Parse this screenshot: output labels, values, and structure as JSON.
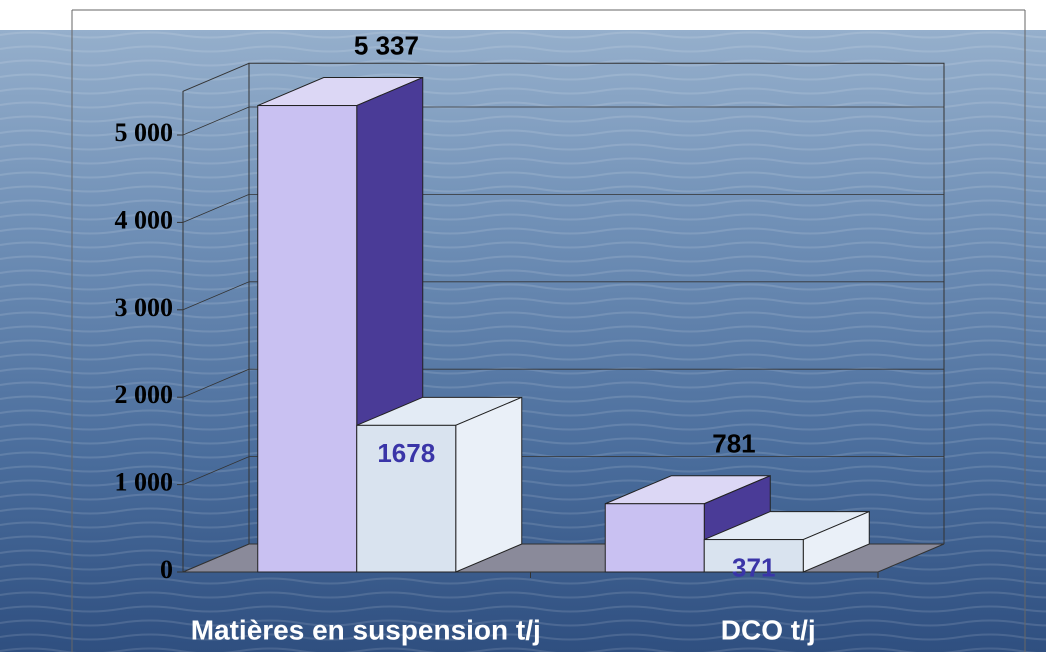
{
  "chart_data": {
    "type": "bar3d",
    "categories": [
      "Matières en suspension t/j",
      "DCO t/j"
    ],
    "series": [
      {
        "color": "#c9c1f2",
        "values": [
          5337,
          781
        ],
        "value_labels": [
          "5 337",
          "781"
        ]
      },
      {
        "color": "#d9e3ef",
        "values": [
          1678,
          371
        ]
      }
    ],
    "ylim": [
      0,
      5500
    ],
    "yticks": [
      0,
      {
        "value": 1000,
        "label": "1 000"
      },
      {
        "value": 2000,
        "label": "2 000"
      },
      {
        "value": 3000,
        "label": "3 000"
      },
      {
        "value": 4000,
        "label": "4 000"
      },
      {
        "value": 5000,
        "label": "5 000"
      }
    ],
    "grid": true
  }
}
